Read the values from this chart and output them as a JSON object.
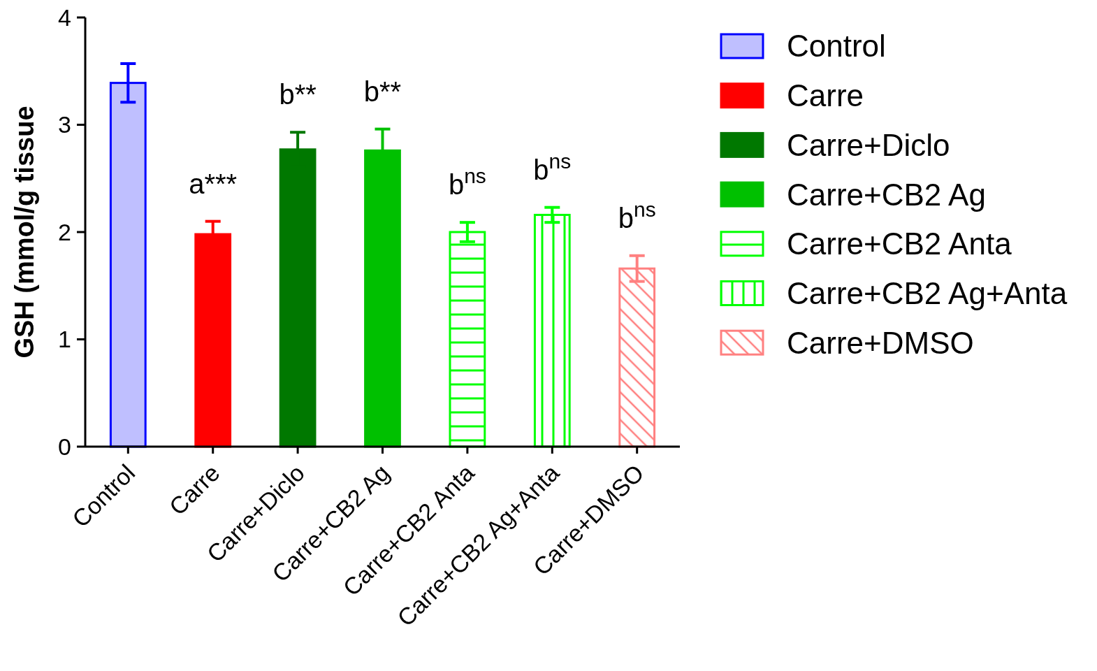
{
  "chart_data": {
    "type": "bar",
    "categories": [
      "Control",
      "Carre",
      "Carre+Diclo",
      "Carre+CB2 Ag",
      "Carre+CB2 Anta",
      "Carre+CB2 Ag+Anta",
      "Carre+DMSO"
    ],
    "series": [
      {
        "name": "Control",
        "color": "#0000ff",
        "values": [
          3.39,
          null,
          null,
          null,
          null,
          null,
          null
        ],
        "errors": [
          0.18,
          null,
          null,
          null,
          null,
          null,
          null
        ]
      },
      {
        "name": "Carre",
        "color": "#ff0000",
        "values": [
          null,
          1.98,
          null,
          null,
          null,
          null,
          null
        ],
        "errors": [
          null,
          0.12,
          null,
          null,
          null,
          null,
          null
        ]
      },
      {
        "name": "Carre+Diclo",
        "color": "#007800",
        "values": [
          null,
          null,
          2.77,
          null,
          null,
          null,
          null
        ],
        "errors": [
          null,
          null,
          0.16,
          null,
          null,
          null,
          null
        ]
      },
      {
        "name": "Carre+CB2 Ag",
        "color": "#00c000",
        "values": [
          null,
          null,
          null,
          2.76,
          null,
          null,
          null
        ],
        "errors": [
          null,
          null,
          null,
          0.2,
          null,
          null,
          null
        ]
      },
      {
        "name": "Carre+CB2 Anta",
        "color": "#00ff00",
        "values": [
          null,
          null,
          null,
          null,
          2.0,
          null,
          null
        ],
        "errors": [
          null,
          null,
          null,
          null,
          0.09,
          null,
          null
        ]
      },
      {
        "name": "Carre+CB2 Ag+Anta",
        "color": "#00ff00",
        "values": [
          null,
          null,
          null,
          null,
          null,
          2.16,
          null
        ],
        "errors": [
          null,
          null,
          null,
          null,
          null,
          0.07,
          null
        ]
      },
      {
        "name": "Carre+DMSO",
        "color": "#ff8080",
        "values": [
          null,
          null,
          null,
          null,
          null,
          null,
          1.66
        ],
        "errors": [
          null,
          null,
          null,
          null,
          null,
          null,
          0.12
        ]
      }
    ],
    "ylabel": "GSH (mmol/g tissue",
    "ylim": [
      0,
      4
    ],
    "yticks": [
      0,
      1,
      2,
      3,
      4
    ],
    "legend": "right",
    "annotations": [
      {
        "text": "a***",
        "x": "Carre",
        "y": 1.98
      },
      {
        "text": "b**",
        "x": "Carre+Diclo",
        "y": 2.77
      },
      {
        "text": "b**",
        "x": "Carre+CB2 Ag",
        "y": 2.76
      },
      {
        "text": "b$^{ns}$",
        "x": "Carre+CB2 Anta",
        "y": 2.0
      },
      {
        "text": "b$^{ns}$",
        "x": "Carre+CB2 Ag+Anta",
        "y": 2.16
      },
      {
        "text": "b$^{ns}$",
        "x": "Carre+DMSO",
        "y": 1.66
      }
    ]
  }
}
